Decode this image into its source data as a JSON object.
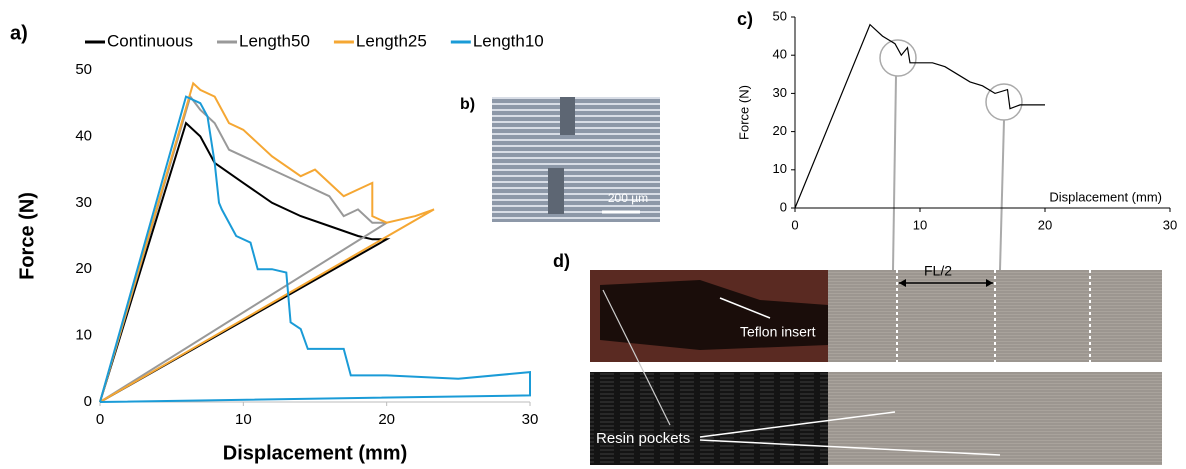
{
  "panel_labels": [
    "a)",
    "b)",
    "c)",
    "d)"
  ],
  "annotations": {
    "scale_bar": "200 µm",
    "fl": "FL/2",
    "teflon": "Teflon insert",
    "resin": "Resin pockets"
  },
  "chart_data": [
    {
      "type": "line",
      "xlabel": "Displacement (mm)",
      "ylabel": "Force (N)",
      "xlim": [
        0,
        30
      ],
      "ylim": [
        0,
        50
      ],
      "xticks": [
        0,
        10,
        20,
        30
      ],
      "yticks": [
        0,
        10,
        20,
        30,
        40,
        50
      ],
      "legend": "top",
      "series": [
        {
          "name": "Continuous",
          "color": "#000000",
          "x": [
            0,
            6,
            7,
            8,
            10,
            12,
            14,
            16,
            18,
            19,
            20,
            0
          ],
          "values": [
            0,
            42,
            40,
            36,
            33,
            30,
            28,
            26.5,
            25,
            24.5,
            24.5,
            0
          ]
        },
        {
          "name": "Length50",
          "color": "#999999",
          "x": [
            0,
            6.3,
            7,
            8,
            9,
            10,
            12,
            14,
            16,
            17,
            18,
            19,
            20,
            0
          ],
          "values": [
            0,
            46,
            44,
            42,
            38,
            37,
            35,
            33,
            31,
            28,
            29,
            27,
            27,
            0
          ]
        },
        {
          "name": "Length25",
          "color": "#f5a733",
          "x": [
            0,
            6.5,
            7,
            8,
            9,
            10,
            12,
            14,
            15,
            16,
            17,
            18,
            19,
            19,
            20,
            22,
            23.3,
            0
          ],
          "values": [
            0,
            48,
            47,
            46,
            42,
            41,
            37,
            34,
            35,
            33,
            31,
            32,
            33,
            28,
            27,
            28,
            29,
            0
          ]
        },
        {
          "name": "Length10",
          "color": "#1a9bd7",
          "x": [
            0,
            6,
            7,
            7.5,
            8,
            8.3,
            8.5,
            9.5,
            10.5,
            11,
            12,
            13,
            13.3,
            14,
            14.5,
            17,
            17.5,
            20,
            25,
            30,
            30,
            0
          ],
          "values": [
            0,
            46,
            45,
            43,
            36,
            30,
            29,
            25,
            24,
            20,
            20,
            19.5,
            12,
            11,
            8,
            8,
            4,
            4,
            3.5,
            4.5,
            1,
            0
          ]
        }
      ]
    },
    {
      "type": "line",
      "xlabel": "Displacement (mm)",
      "ylabel": "Force (N)",
      "xlim": [
        0,
        30
      ],
      "ylim": [
        0,
        50
      ],
      "xticks": [
        0,
        10,
        20,
        30
      ],
      "yticks": [
        0,
        10,
        20,
        30,
        40,
        50
      ],
      "series": [
        {
          "color": "#000000",
          "x": [
            0,
            6,
            7,
            8,
            8.5,
            9,
            9.2,
            10,
            11,
            12,
            13,
            14,
            15,
            16,
            17,
            17.2,
            18,
            20
          ],
          "values": [
            0,
            48,
            45,
            43,
            40,
            42,
            38,
            38,
            38,
            37,
            35,
            33,
            32,
            30,
            31,
            26,
            27,
            27
          ]
        }
      ]
    }
  ]
}
